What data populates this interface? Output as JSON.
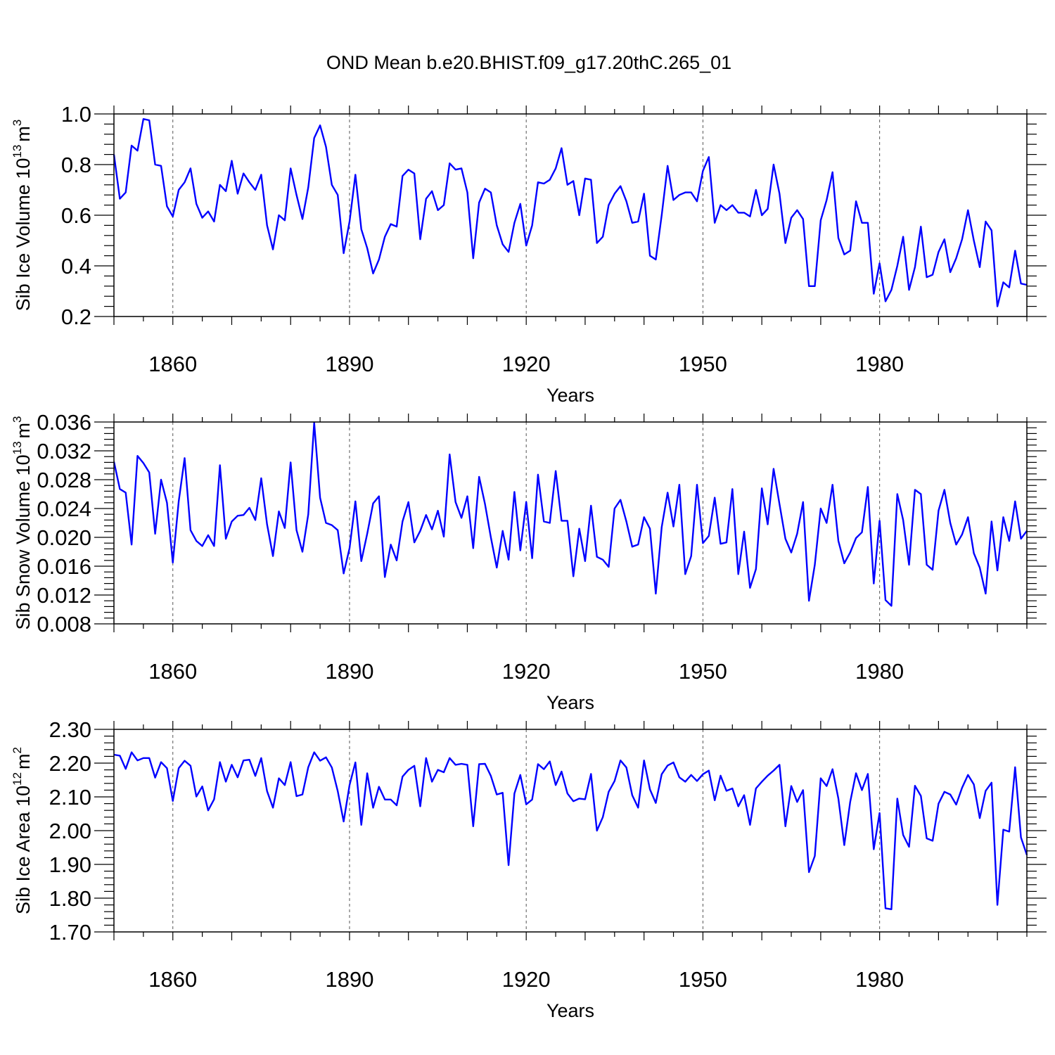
{
  "title": "OND Mean b.e20.BHIST.f09_g17.20thC.265_01",
  "colors": {
    "line": "#0000ff",
    "axis": "#000000",
    "grid": "#555555"
  },
  "chart_data": [
    {
      "type": "line",
      "ylabel_main": "Sib Ice Volume 10",
      "ylabel_exp": "13",
      "ylabel_unit": "m",
      "ylabel_unit_exp": "3",
      "xlabel": "Years",
      "xlim": [
        1850,
        2005
      ],
      "ylim": [
        0.2,
        1.0
      ],
      "x_ticks": [
        1860,
        1890,
        1920,
        1950,
        1980
      ],
      "x_tick_labels": [
        "1860",
        "1890",
        "1920",
        "1950",
        "1980"
      ],
      "y_ticks": [
        0.2,
        0.4,
        0.6,
        0.8,
        1.0
      ],
      "y_tick_labels": [
        "0.2",
        "0.4",
        "0.6",
        "0.8",
        "1.0"
      ],
      "x_start": 1850,
      "values": [
        0.84,
        0.665,
        0.69,
        0.875,
        0.855,
        0.98,
        0.975,
        0.8,
        0.795,
        0.635,
        0.595,
        0.7,
        0.73,
        0.785,
        0.645,
        0.59,
        0.615,
        0.575,
        0.72,
        0.695,
        0.815,
        0.685,
        0.765,
        0.73,
        0.7,
        0.76,
        0.56,
        0.465,
        0.6,
        0.58,
        0.785,
        0.68,
        0.585,
        0.71,
        0.905,
        0.955,
        0.87,
        0.72,
        0.68,
        0.45,
        0.575,
        0.76,
        0.545,
        0.47,
        0.37,
        0.425,
        0.515,
        0.565,
        0.555,
        0.755,
        0.78,
        0.765,
        0.505,
        0.665,
        0.695,
        0.62,
        0.64,
        0.805,
        0.78,
        0.785,
        0.69,
        0.43,
        0.65,
        0.705,
        0.69,
        0.56,
        0.485,
        0.455,
        0.57,
        0.645,
        0.48,
        0.56,
        0.73,
        0.725,
        0.74,
        0.785,
        0.865,
        0.72,
        0.735,
        0.6,
        0.745,
        0.74,
        0.49,
        0.515,
        0.64,
        0.685,
        0.715,
        0.655,
        0.57,
        0.575,
        0.685,
        0.44,
        0.425,
        0.6,
        0.795,
        0.66,
        0.68,
        0.69,
        0.69,
        0.655,
        0.775,
        0.83,
        0.57,
        0.64,
        0.62,
        0.64,
        0.61,
        0.61,
        0.595,
        0.7,
        0.6,
        0.625,
        0.8,
        0.685,
        0.49,
        0.59,
        0.62,
        0.585,
        0.32,
        0.32,
        0.58,
        0.66,
        0.77,
        0.51,
        0.445,
        0.46,
        0.655,
        0.57,
        0.57,
        0.29,
        0.41,
        0.26,
        0.305,
        0.4,
        0.515,
        0.305,
        0.395,
        0.555,
        0.355,
        0.365,
        0.455,
        0.505,
        0.375,
        0.43,
        0.505,
        0.62,
        0.5,
        0.395,
        0.575,
        0.54,
        0.24,
        0.335,
        0.315,
        0.46,
        0.33,
        0.325
      ]
    },
    {
      "type": "line",
      "ylabel_main": "Sib Snow Volume 10",
      "ylabel_exp": "13",
      "ylabel_unit": "m",
      "ylabel_unit_exp": "3",
      "xlabel": "Years",
      "xlim": [
        1850,
        2005
      ],
      "ylim": [
        0.008,
        0.036
      ],
      "x_ticks": [
        1860,
        1890,
        1920,
        1950,
        1980
      ],
      "x_tick_labels": [
        "1860",
        "1890",
        "1920",
        "1950",
        "1980"
      ],
      "y_ticks": [
        0.008,
        0.012,
        0.016,
        0.02,
        0.024,
        0.028,
        0.032,
        0.036
      ],
      "y_tick_labels": [
        "0.008",
        "0.012",
        "0.016",
        "0.020",
        "0.024",
        "0.028",
        "0.032",
        "0.036"
      ],
      "x_start": 1850,
      "values": [
        0.0305,
        0.0267,
        0.0262,
        0.019,
        0.0313,
        0.0303,
        0.029,
        0.0205,
        0.028,
        0.0248,
        0.0165,
        0.025,
        0.031,
        0.021,
        0.0195,
        0.0188,
        0.0203,
        0.0188,
        0.03,
        0.0198,
        0.0222,
        0.023,
        0.0231,
        0.0241,
        0.0224,
        0.0282,
        0.0218,
        0.0174,
        0.0236,
        0.0213,
        0.0304,
        0.021,
        0.018,
        0.0232,
        0.0359,
        0.0255,
        0.022,
        0.0217,
        0.021,
        0.015,
        0.0185,
        0.025,
        0.0167,
        0.0205,
        0.0247,
        0.0257,
        0.0145,
        0.019,
        0.0168,
        0.0222,
        0.0249,
        0.0193,
        0.0209,
        0.0231,
        0.0211,
        0.0237,
        0.0201,
        0.0315,
        0.0249,
        0.0227,
        0.0257,
        0.0185,
        0.0284,
        0.0246,
        0.02,
        0.0158,
        0.0209,
        0.0169,
        0.0263,
        0.0182,
        0.0249,
        0.0171,
        0.0287,
        0.0222,
        0.022,
        0.0292,
        0.0223,
        0.0223,
        0.0146,
        0.0212,
        0.0167,
        0.0244,
        0.0173,
        0.0169,
        0.0159,
        0.024,
        0.0252,
        0.0222,
        0.0187,
        0.019,
        0.0228,
        0.0212,
        0.0122,
        0.0214,
        0.0262,
        0.0215,
        0.0273,
        0.0149,
        0.0174,
        0.0273,
        0.0192,
        0.0202,
        0.0255,
        0.0191,
        0.0193,
        0.0267,
        0.0149,
        0.0208,
        0.013,
        0.0156,
        0.0268,
        0.0218,
        0.0295,
        0.0246,
        0.0198,
        0.0179,
        0.0205,
        0.0249,
        0.0112,
        0.0162,
        0.024,
        0.022,
        0.0273,
        0.0195,
        0.0164,
        0.0179,
        0.0199,
        0.0207,
        0.027,
        0.0136,
        0.0223,
        0.0113,
        0.0105,
        0.026,
        0.0224,
        0.0162,
        0.0266,
        0.026,
        0.0162,
        0.0155,
        0.0237,
        0.0266,
        0.022,
        0.019,
        0.0204,
        0.0228,
        0.0178,
        0.0158,
        0.0122,
        0.0222,
        0.0154,
        0.0228,
        0.0195,
        0.025,
        0.0198,
        0.0209
      ]
    },
    {
      "type": "line",
      "ylabel_main": "Sib Ice Area 10",
      "ylabel_exp": "12",
      "ylabel_unit": "m",
      "ylabel_unit_exp": "2",
      "xlabel": "Years",
      "xlim": [
        1850,
        2005
      ],
      "ylim": [
        1.7,
        2.3
      ],
      "x_ticks": [
        1860,
        1890,
        1920,
        1950,
        1980
      ],
      "x_tick_labels": [
        "1860",
        "1890",
        "1920",
        "1950",
        "1980"
      ],
      "y_ticks": [
        1.7,
        1.8,
        1.9,
        2.0,
        2.1,
        2.2,
        2.3
      ],
      "y_tick_labels": [
        "1.70",
        "1.80",
        "1.90",
        "2.00",
        "2.10",
        "2.20",
        "2.30"
      ],
      "x_start": 1850,
      "values": [
        2.225,
        2.222,
        2.183,
        2.232,
        2.208,
        2.215,
        2.215,
        2.157,
        2.203,
        2.185,
        2.088,
        2.185,
        2.207,
        2.192,
        2.101,
        2.131,
        2.06,
        2.093,
        2.203,
        2.145,
        2.195,
        2.158,
        2.208,
        2.21,
        2.162,
        2.215,
        2.117,
        2.068,
        2.155,
        2.135,
        2.203,
        2.102,
        2.107,
        2.188,
        2.232,
        2.207,
        2.217,
        2.187,
        2.117,
        2.027,
        2.135,
        2.202,
        2.017,
        2.17,
        2.068,
        2.13,
        2.092,
        2.092,
        2.075,
        2.16,
        2.18,
        2.192,
        2.072,
        2.215,
        2.145,
        2.18,
        2.173,
        2.215,
        2.195,
        2.198,
        2.195,
        2.013,
        2.197,
        2.198,
        2.162,
        2.107,
        2.112,
        1.898,
        2.11,
        2.165,
        2.078,
        2.092,
        2.197,
        2.182,
        2.205,
        2.135,
        2.175,
        2.11,
        2.087,
        2.095,
        2.093,
        2.168,
        2.0,
        2.04,
        2.115,
        2.147,
        2.208,
        2.187,
        2.105,
        2.068,
        2.208,
        2.122,
        2.082,
        2.167,
        2.193,
        2.202,
        2.158,
        2.145,
        2.165,
        2.147,
        2.167,
        2.178,
        2.09,
        2.163,
        2.118,
        2.125,
        2.072,
        2.105,
        2.017,
        2.125,
        2.145,
        2.163,
        2.178,
        2.195,
        2.013,
        2.132,
        2.085,
        2.12,
        1.877,
        1.925,
        2.155,
        2.132,
        2.182,
        2.095,
        1.957,
        2.085,
        2.17,
        2.12,
        2.168,
        1.945,
        2.052,
        1.77,
        1.767,
        2.095,
        1.987,
        1.952,
        2.133,
        2.103,
        1.977,
        1.97,
        2.08,
        2.115,
        2.107,
        2.077,
        2.127,
        2.165,
        2.137,
        2.037,
        2.118,
        2.142,
        1.78,
        2.003,
        1.997,
        2.188,
        1.98,
        1.928
      ]
    }
  ]
}
